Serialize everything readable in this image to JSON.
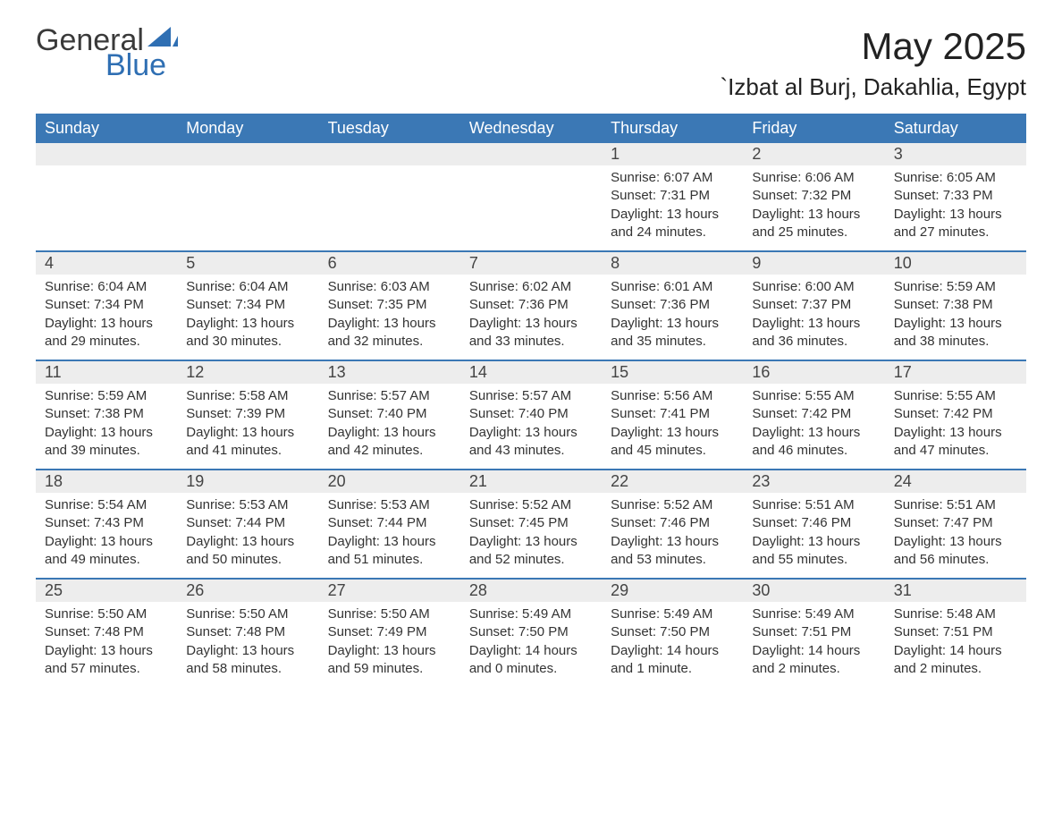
{
  "logo": {
    "word1": "General",
    "word2": "Blue"
  },
  "title": "May 2025",
  "location": "`Izbat al Burj, Dakahlia, Egypt",
  "colors": {
    "header_bg": "#3b78b5",
    "header_text": "#ffffff",
    "daynum_bg": "#ededed",
    "text": "#333333",
    "logo_gray": "#3a3a3a",
    "logo_blue": "#2f6fb3",
    "background": "#ffffff",
    "week_border": "#3b78b5"
  },
  "fonts": {
    "family": "Arial",
    "title_size_pt": 32,
    "location_size_pt": 20,
    "header_size_pt": 14,
    "daynum_size_pt": 14,
    "body_size_pt": 11
  },
  "layout": {
    "columns": 7,
    "rows": 5,
    "blank_leading_cells": 4
  },
  "weekdays": [
    "Sunday",
    "Monday",
    "Tuesday",
    "Wednesday",
    "Thursday",
    "Friday",
    "Saturday"
  ],
  "days": [
    {
      "n": "1",
      "sunrise": "Sunrise: 6:07 AM",
      "sunset": "Sunset: 7:31 PM",
      "daylight": "Daylight: 13 hours and 24 minutes."
    },
    {
      "n": "2",
      "sunrise": "Sunrise: 6:06 AM",
      "sunset": "Sunset: 7:32 PM",
      "daylight": "Daylight: 13 hours and 25 minutes."
    },
    {
      "n": "3",
      "sunrise": "Sunrise: 6:05 AM",
      "sunset": "Sunset: 7:33 PM",
      "daylight": "Daylight: 13 hours and 27 minutes."
    },
    {
      "n": "4",
      "sunrise": "Sunrise: 6:04 AM",
      "sunset": "Sunset: 7:34 PM",
      "daylight": "Daylight: 13 hours and 29 minutes."
    },
    {
      "n": "5",
      "sunrise": "Sunrise: 6:04 AM",
      "sunset": "Sunset: 7:34 PM",
      "daylight": "Daylight: 13 hours and 30 minutes."
    },
    {
      "n": "6",
      "sunrise": "Sunrise: 6:03 AM",
      "sunset": "Sunset: 7:35 PM",
      "daylight": "Daylight: 13 hours and 32 minutes."
    },
    {
      "n": "7",
      "sunrise": "Sunrise: 6:02 AM",
      "sunset": "Sunset: 7:36 PM",
      "daylight": "Daylight: 13 hours and 33 minutes."
    },
    {
      "n": "8",
      "sunrise": "Sunrise: 6:01 AM",
      "sunset": "Sunset: 7:36 PM",
      "daylight": "Daylight: 13 hours and 35 minutes."
    },
    {
      "n": "9",
      "sunrise": "Sunrise: 6:00 AM",
      "sunset": "Sunset: 7:37 PM",
      "daylight": "Daylight: 13 hours and 36 minutes."
    },
    {
      "n": "10",
      "sunrise": "Sunrise: 5:59 AM",
      "sunset": "Sunset: 7:38 PM",
      "daylight": "Daylight: 13 hours and 38 minutes."
    },
    {
      "n": "11",
      "sunrise": "Sunrise: 5:59 AM",
      "sunset": "Sunset: 7:38 PM",
      "daylight": "Daylight: 13 hours and 39 minutes."
    },
    {
      "n": "12",
      "sunrise": "Sunrise: 5:58 AM",
      "sunset": "Sunset: 7:39 PM",
      "daylight": "Daylight: 13 hours and 41 minutes."
    },
    {
      "n": "13",
      "sunrise": "Sunrise: 5:57 AM",
      "sunset": "Sunset: 7:40 PM",
      "daylight": "Daylight: 13 hours and 42 minutes."
    },
    {
      "n": "14",
      "sunrise": "Sunrise: 5:57 AM",
      "sunset": "Sunset: 7:40 PM",
      "daylight": "Daylight: 13 hours and 43 minutes."
    },
    {
      "n": "15",
      "sunrise": "Sunrise: 5:56 AM",
      "sunset": "Sunset: 7:41 PM",
      "daylight": "Daylight: 13 hours and 45 minutes."
    },
    {
      "n": "16",
      "sunrise": "Sunrise: 5:55 AM",
      "sunset": "Sunset: 7:42 PM",
      "daylight": "Daylight: 13 hours and 46 minutes."
    },
    {
      "n": "17",
      "sunrise": "Sunrise: 5:55 AM",
      "sunset": "Sunset: 7:42 PM",
      "daylight": "Daylight: 13 hours and 47 minutes."
    },
    {
      "n": "18",
      "sunrise": "Sunrise: 5:54 AM",
      "sunset": "Sunset: 7:43 PM",
      "daylight": "Daylight: 13 hours and 49 minutes."
    },
    {
      "n": "19",
      "sunrise": "Sunrise: 5:53 AM",
      "sunset": "Sunset: 7:44 PM",
      "daylight": "Daylight: 13 hours and 50 minutes."
    },
    {
      "n": "20",
      "sunrise": "Sunrise: 5:53 AM",
      "sunset": "Sunset: 7:44 PM",
      "daylight": "Daylight: 13 hours and 51 minutes."
    },
    {
      "n": "21",
      "sunrise": "Sunrise: 5:52 AM",
      "sunset": "Sunset: 7:45 PM",
      "daylight": "Daylight: 13 hours and 52 minutes."
    },
    {
      "n": "22",
      "sunrise": "Sunrise: 5:52 AM",
      "sunset": "Sunset: 7:46 PM",
      "daylight": "Daylight: 13 hours and 53 minutes."
    },
    {
      "n": "23",
      "sunrise": "Sunrise: 5:51 AM",
      "sunset": "Sunset: 7:46 PM",
      "daylight": "Daylight: 13 hours and 55 minutes."
    },
    {
      "n": "24",
      "sunrise": "Sunrise: 5:51 AM",
      "sunset": "Sunset: 7:47 PM",
      "daylight": "Daylight: 13 hours and 56 minutes."
    },
    {
      "n": "25",
      "sunrise": "Sunrise: 5:50 AM",
      "sunset": "Sunset: 7:48 PM",
      "daylight": "Daylight: 13 hours and 57 minutes."
    },
    {
      "n": "26",
      "sunrise": "Sunrise: 5:50 AM",
      "sunset": "Sunset: 7:48 PM",
      "daylight": "Daylight: 13 hours and 58 minutes."
    },
    {
      "n": "27",
      "sunrise": "Sunrise: 5:50 AM",
      "sunset": "Sunset: 7:49 PM",
      "daylight": "Daylight: 13 hours and 59 minutes."
    },
    {
      "n": "28",
      "sunrise": "Sunrise: 5:49 AM",
      "sunset": "Sunset: 7:50 PM",
      "daylight": "Daylight: 14 hours and 0 minutes."
    },
    {
      "n": "29",
      "sunrise": "Sunrise: 5:49 AM",
      "sunset": "Sunset: 7:50 PM",
      "daylight": "Daylight: 14 hours and 1 minute."
    },
    {
      "n": "30",
      "sunrise": "Sunrise: 5:49 AM",
      "sunset": "Sunset: 7:51 PM",
      "daylight": "Daylight: 14 hours and 2 minutes."
    },
    {
      "n": "31",
      "sunrise": "Sunrise: 5:48 AM",
      "sunset": "Sunset: 7:51 PM",
      "daylight": "Daylight: 14 hours and 2 minutes."
    }
  ]
}
